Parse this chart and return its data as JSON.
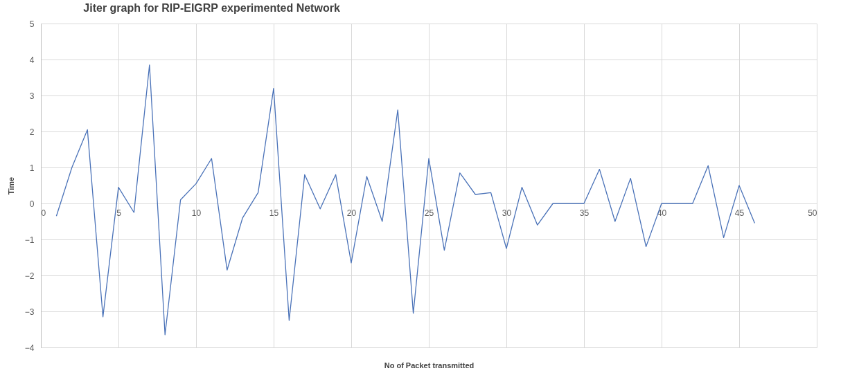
{
  "chart_data": {
    "type": "line",
    "title": "Jiter graph for RIP-EIGRP experimented Network",
    "xlabel": "No of Packet transmitted",
    "ylabel": "Time",
    "x": [
      1,
      2,
      3,
      4,
      5,
      6,
      7,
      8,
      9,
      10,
      11,
      12,
      13,
      14,
      15,
      16,
      17,
      18,
      19,
      20,
      21,
      22,
      23,
      24,
      25,
      26,
      27,
      28,
      29,
      30,
      31,
      32,
      33,
      34,
      35,
      36,
      37,
      38,
      39,
      40,
      41,
      42,
      43,
      44,
      45,
      46
    ],
    "series": [
      {
        "color": "#4a72b8",
        "values": [
          -0.35,
          1.0,
          2.05,
          -3.15,
          0.45,
          -0.25,
          3.85,
          -3.65,
          0.1,
          0.55,
          1.25,
          -1.85,
          -0.4,
          0.3,
          3.2,
          -3.25,
          0.8,
          -0.15,
          0.8,
          -1.65,
          0.75,
          -0.5,
          2.6,
          -3.05,
          1.25,
          -1.3,
          0.85,
          0.25,
          0.3,
          -1.25,
          0.45,
          -0.6,
          0,
          0,
          0,
          0.95,
          -0.5,
          0.7,
          -1.2,
          0,
          0,
          0,
          1.05,
          -0.95,
          0.5,
          -0.55
        ]
      }
    ],
    "xlim": [
      0,
      50
    ],
    "xticks": [
      0,
      5,
      10,
      15,
      20,
      25,
      30,
      35,
      40,
      45,
      50
    ],
    "ylim": [
      -4,
      5
    ],
    "yticks": [
      -4,
      -3,
      -2,
      -1,
      0,
      1,
      2,
      3,
      4,
      5
    ],
    "grid": true,
    "marker": "none",
    "line_style": "solid"
  }
}
